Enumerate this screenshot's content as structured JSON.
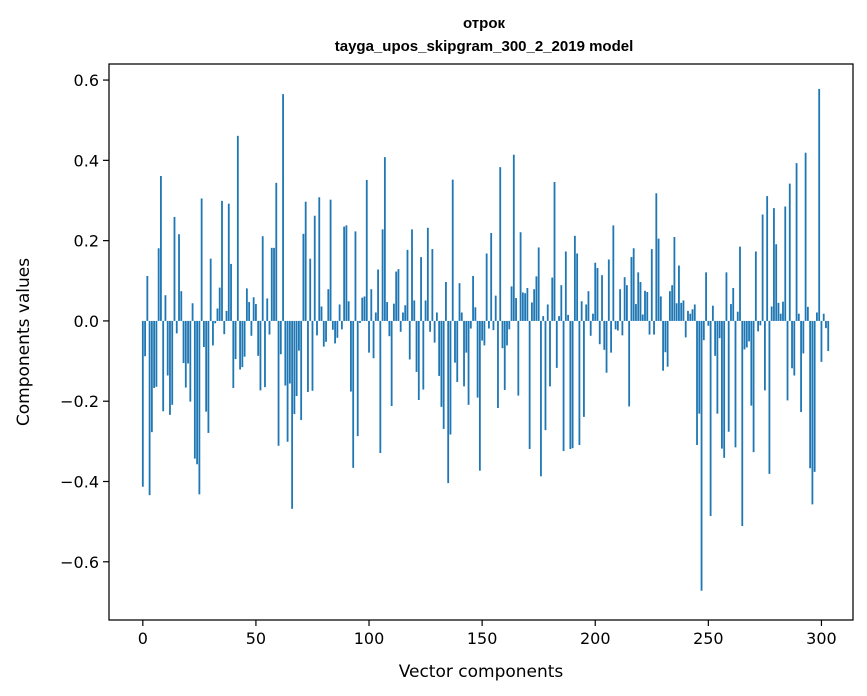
{
  "colors": {
    "bar": "#1f77b4",
    "axis": "#000000",
    "background": "#ffffff"
  },
  "chart_data": {
    "type": "bar",
    "title": "отрок",
    "subtitle": "tayga_upos_skipgram_300_2_2019 model",
    "xlabel": "Vector components",
    "ylabel": "Components values",
    "xlim": [
      -14.95,
      313.95
    ],
    "ylim": [
      -0.745,
      0.64
    ],
    "xticks": [
      0,
      50,
      100,
      150,
      200,
      250,
      300
    ],
    "xtick_labels": [
      "0",
      "50",
      "100",
      "150",
      "200",
      "250",
      "300"
    ],
    "yticks": [
      -0.6,
      -0.4,
      -0.2,
      0.0,
      0.2,
      0.4,
      0.6
    ],
    "ytick_labels": [
      "−0.6",
      "−0.4",
      "−0.2",
      "0.0",
      "0.2",
      "0.4",
      "0.6"
    ],
    "values": [
      -0.413,
      -0.088,
      0.112,
      -0.434,
      -0.277,
      -0.167,
      -0.164,
      0.181,
      0.361,
      -0.225,
      0.064,
      -0.136,
      -0.234,
      -0.209,
      0.259,
      -0.031,
      0.216,
      0.074,
      -0.105,
      -0.166,
      -0.106,
      -0.201,
      0.044,
      -0.343,
      -0.357,
      -0.432,
      0.305,
      -0.065,
      -0.226,
      -0.279,
      0.155,
      -0.061,
      -0.006,
      0.031,
      0.083,
      0.299,
      -0.033,
      0.025,
      0.292,
      0.142,
      -0.167,
      -0.095,
      0.461,
      -0.121,
      -0.115,
      -0.089,
      0.081,
      0.047,
      -0.037,
      0.059,
      0.042,
      -0.087,
      -0.173,
      0.211,
      -0.165,
      0.056,
      -0.034,
      0.182,
      0.182,
      0.344,
      -0.311,
      -0.083,
      0.565,
      -0.161,
      -0.301,
      -0.156,
      -0.468,
      -0.232,
      -0.187,
      -0.074,
      -0.247,
      0.217,
      0.297,
      -0.177,
      0.155,
      -0.174,
      0.262,
      -0.036,
      0.308,
      0.036,
      -0.064,
      -0.052,
      0.079,
      0.302,
      -0.022,
      -0.056,
      -0.042,
      0.041,
      -0.021,
      0.235,
      0.238,
      0.049,
      -0.176,
      -0.366,
      0.223,
      -0.287,
      -0.005,
      0.058,
      0.061,
      0.351,
      -0.079,
      0.079,
      -0.093,
      0.021,
      0.128,
      -0.329,
      0.228,
      0.408,
      0.047,
      -0.038,
      -0.212,
      0.043,
      0.123,
      0.129,
      -0.027,
      0.021,
      0.039,
      0.177,
      -0.096,
      0.228,
      0.051,
      -0.127,
      -0.197,
      0.159,
      -0.171,
      0.051,
      0.232,
      -0.027,
      0.179,
      -0.054,
      0.021,
      -0.137,
      -0.214,
      -0.269,
      0.097,
      -0.404,
      -0.283,
      0.352,
      -0.104,
      -0.152,
      0.094,
      0.021,
      -0.163,
      -0.079,
      -0.209,
      -0.019,
      0.112,
      0.034,
      -0.191,
      -0.373,
      -0.049,
      -0.061,
      0.168,
      -0.019,
      0.219,
      -0.023,
      0.063,
      -0.217,
      0.383,
      -0.068,
      -0.172,
      -0.061,
      -0.021,
      0.086,
      0.414,
      0.057,
      -0.186,
      0.221,
      0.071,
      0.069,
      0.082,
      -0.319,
      0.046,
      0.079,
      0.111,
      0.183,
      -0.387,
      0.012,
      -0.272,
      0.041,
      -0.163,
      0.108,
      0.346,
      -0.117,
      0.012,
      0.089,
      -0.324,
      0.173,
      0.015,
      -0.319,
      -0.317,
      0.212,
      0.168,
      -0.309,
      0.049,
      -0.239,
      0.041,
      0.074,
      -0.037,
      0.018,
      0.145,
      0.132,
      -0.058,
      0.114,
      -0.072,
      -0.129,
      0.153,
      -0.079,
      0.238,
      -0.021,
      -0.024,
      0.079,
      -0.036,
      0.109,
      0.089,
      -0.213,
      0.159,
      0.181,
      0.042,
      0.121,
      0.097,
      0.016,
      0.075,
      0.072,
      -0.034,
      0.179,
      -0.034,
      0.318,
      0.205,
      0.061,
      -0.124,
      -0.078,
      -0.114,
      0.074,
      0.089,
      0.209,
      0.044,
      0.138,
      0.045,
      0.051,
      -0.041,
      0.025,
      0.018,
      0.029,
      0.041,
      -0.309,
      -0.231,
      -0.672,
      -0.048,
      0.121,
      -0.012,
      -0.486,
      0.038,
      -0.087,
      -0.231,
      -0.043,
      -0.318,
      -0.341,
      0.121,
      -0.276,
      0.042,
      0.082,
      -0.315,
      0.023,
      0.185,
      -0.511,
      -0.071,
      -0.066,
      -0.051,
      -0.211,
      -0.327,
      0.173,
      -0.026,
      -0.011,
      0.265,
      -0.173,
      0.311,
      -0.381,
      0.036,
      0.281,
      0.191,
      0.045,
      0.018,
      0.048,
      0.285,
      -0.198,
      0.342,
      -0.118,
      -0.136,
      0.393,
      0.018,
      -0.227,
      -0.081,
      0.419,
      0.035,
      -0.367,
      -0.457,
      -0.376,
      0.021,
      0.578,
      -0.102,
      0.018,
      -0.018,
      -0.075
    ]
  }
}
